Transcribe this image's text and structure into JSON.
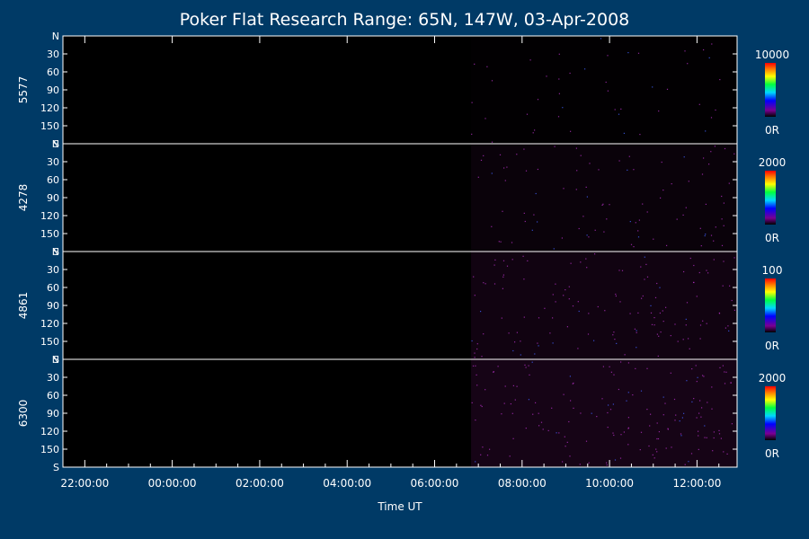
{
  "chart_data": {
    "type": "heatmap",
    "title": "Poker Flat Research Range: 65N, 147W, 03-Apr-2008",
    "xlabel": "Time UT",
    "x_ticks": [
      "22:00:00",
      "00:00:00",
      "02:00:00",
      "04:00:00",
      "06:00:00",
      "08:00:00",
      "10:00:00",
      "12:00:00"
    ],
    "x_range": [
      "21:30:00",
      "12:55:00"
    ],
    "y_ticks": [
      "N",
      "30",
      "60",
      "90",
      "120",
      "150",
      "S"
    ],
    "y_range": [
      0,
      180
    ],
    "data_start": "06:50:00",
    "panels": [
      {
        "label": "5577",
        "scale_max": "10000",
        "scale_min": "0R",
        "mean_intensity": 0.05
      },
      {
        "label": "4278",
        "scale_max": "2000",
        "scale_min": "0R",
        "mean_intensity": 0.2
      },
      {
        "label": "4861",
        "scale_max": "100",
        "scale_min": "0R",
        "mean_intensity": 0.35
      },
      {
        "label": "6300",
        "scale_max": "2000",
        "scale_min": "0R",
        "mean_intensity": 0.45
      }
    ],
    "colors": {
      "background": "#003a66",
      "plot": "#000000",
      "axis": "#ffffff",
      "data_tint": "#8a1c8c"
    }
  }
}
